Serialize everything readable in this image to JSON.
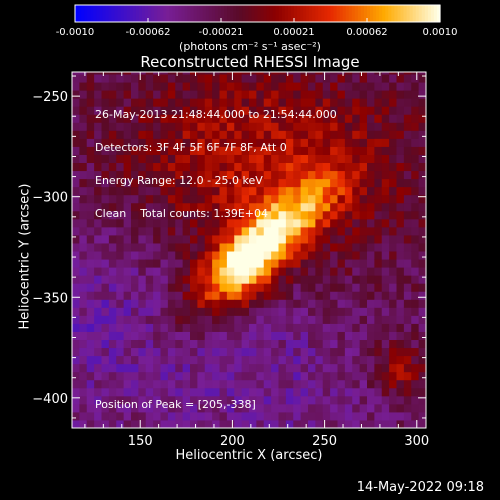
{
  "chart_data": {
    "type": "heatmap",
    "title": "Reconstructed RHESSI Image",
    "xlabel": "Heliocentric X (arcsec)",
    "ylabel": "Heliocentric Y (arcsec)",
    "xlim": [
      113,
      305
    ],
    "ylim": [
      -415,
      -238
    ],
    "x_ticks": [
      150,
      200,
      250,
      300
    ],
    "y_ticks": [
      -250,
      -300,
      -350,
      -400
    ],
    "colorbar": {
      "ticks": [
        "-0.0010",
        "-0.00062",
        "-0.00021",
        "0.00021",
        "0.00062",
        "0.0010"
      ],
      "range": [
        -0.001,
        0.001
      ],
      "unit_label": "(photons cm⁻² s⁻¹ asec⁻²)",
      "colormap": "blue-purple-red-yellow-white"
    },
    "annotations": [
      "26-May-2013 21:48:44.000 to 21:54:44.000",
      "Detectors: 3F 4F 5F 6F 7F 8F, Att 0",
      "Energy Range: 12.0 - 25.0 keV",
      "Clean    Total counts: 1.39E+04"
    ],
    "peak_label": "Position of Peak = [205,-338]",
    "peak": [
      205,
      -338
    ],
    "sources": [
      {
        "x": 205,
        "y": -338,
        "value": 0.001,
        "note": "main bright source (peak)"
      },
      {
        "x": 222,
        "y": -318,
        "value": 0.0008
      },
      {
        "x": 238,
        "y": -300,
        "value": 0.0006
      },
      {
        "x": 200,
        "y": -270,
        "value": 0.00045
      },
      {
        "x": 290,
        "y": -385,
        "value": 0.00045
      }
    ]
  },
  "footer": {
    "date": "14-May-2022 09:18"
  },
  "colors": {
    "background": "#000000",
    "foreground": "#ffffff"
  }
}
